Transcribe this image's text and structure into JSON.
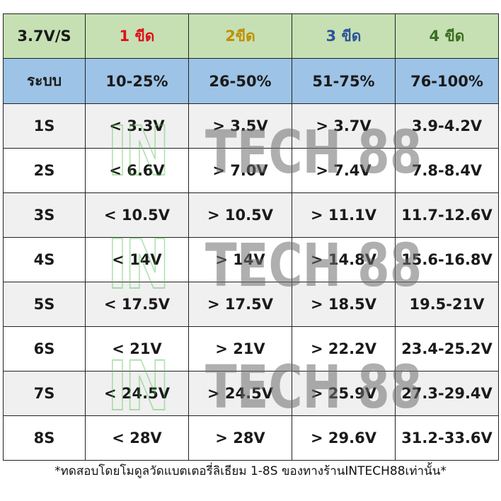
{
  "header": {
    "corner": "3.7V/S",
    "levels": [
      "1 ขีด",
      "2ขีด",
      "3 ขีด",
      "4 ขีด"
    ]
  },
  "subheader": {
    "label": "ระบบ",
    "ranges": [
      "10-25%",
      "26-50%",
      "51-75%",
      "76-100%"
    ]
  },
  "rows": [
    {
      "system": "1S",
      "values": [
        "< 3.3V",
        "> 3.5V",
        "> 3.7V",
        "3.9-4.2V"
      ]
    },
    {
      "system": "2S",
      "values": [
        "< 6.6V",
        "> 7.0V",
        "> 7.4V",
        "7.8-8.4V"
      ]
    },
    {
      "system": "3S",
      "values": [
        "< 10.5V",
        "> 10.5V",
        "> 11.1V",
        "11.7-12.6V"
      ]
    },
    {
      "system": "4S",
      "values": [
        "< 14V",
        "> 14V",
        "> 14.8V",
        "15.6-16.8V"
      ]
    },
    {
      "system": "5S",
      "values": [
        "< 17.5V",
        "> 17.5V",
        "> 18.5V",
        "19.5-21V"
      ]
    },
    {
      "system": "6S",
      "values": [
        "< 21V",
        "> 21V",
        "> 22.2V",
        "23.4-25.2V"
      ]
    },
    {
      "system": "7S",
      "values": [
        "< 24.5V",
        "> 24.5V",
        "> 25.9V",
        "27.3-29.4V"
      ]
    },
    {
      "system": "8S",
      "values": [
        "< 28V",
        "> 28V",
        "> 29.6V",
        "31.2-33.6V"
      ]
    }
  ],
  "footnote": "*ทดสอบโดยโมดูลวัดแบตเตอรี่ลิเธียม 1-8S ของทางร้านINTECH88เท่านั้น*",
  "watermark": {
    "part1": "IN",
    "part2": "TECH 88"
  },
  "colors": {
    "header_bg": "#c6e0b4",
    "subheader_bg": "#9dc3e6",
    "level1": "#e0101a",
    "level2": "#c09000",
    "level3": "#2e5597",
    "level4": "#3b6e22"
  }
}
